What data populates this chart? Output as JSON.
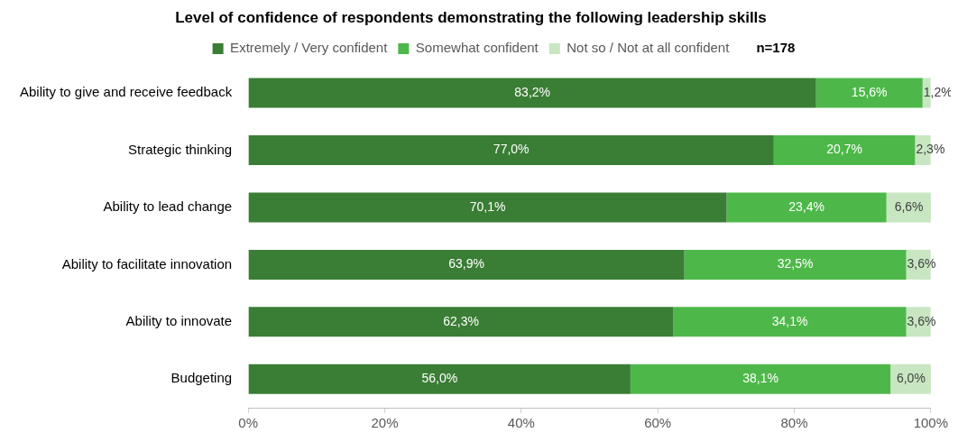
{
  "chart_data": {
    "type": "bar",
    "orientation": "horizontal",
    "stacked": true,
    "title": "Level of confidence of respondents demonstrating the following leadership skills",
    "categories": [
      "Ability to give and receive feedback",
      "Strategic thinking",
      "Ability to lead change",
      "Ability to facilitate innovation",
      "Ability to innovate",
      "Budgeting"
    ],
    "series": [
      {
        "name": "Extremely / Very confident",
        "color": "#3a7d35",
        "values": [
          83.2,
          77.0,
          70.1,
          63.9,
          62.3,
          56.0
        ],
        "value_labels": [
          "83,2%",
          "77,0%",
          "70,1%",
          "63,9%",
          "62,3%",
          "56,0%"
        ]
      },
      {
        "name": "Somewhat confident",
        "color": "#4db849",
        "values": [
          15.6,
          20.7,
          23.4,
          32.5,
          34.1,
          38.1
        ],
        "value_labels": [
          "15,6%",
          "20,7%",
          "23,4%",
          "32,5%",
          "34,1%",
          "38,1%"
        ]
      },
      {
        "name": "Not so / Not at all confident",
        "color": "#c8e6c2",
        "values": [
          1.2,
          2.3,
          6.6,
          3.6,
          3.6,
          6.0
        ],
        "value_labels": [
          "1,2%",
          "2,3%",
          "6,6%",
          "3,6%",
          "3,6%",
          "6,0%"
        ]
      }
    ],
    "xlim": [
      0,
      100
    ],
    "xticks": [
      {
        "value": 0,
        "label": "0%"
      },
      {
        "value": 20,
        "label": "20%"
      },
      {
        "value": 40,
        "label": "40%"
      },
      {
        "value": 60,
        "label": "60%"
      },
      {
        "value": 80,
        "label": "80%"
      },
      {
        "value": 100,
        "label": "100%"
      }
    ],
    "legend": "top",
    "grid": false,
    "annotations": [
      "n=178"
    ]
  }
}
